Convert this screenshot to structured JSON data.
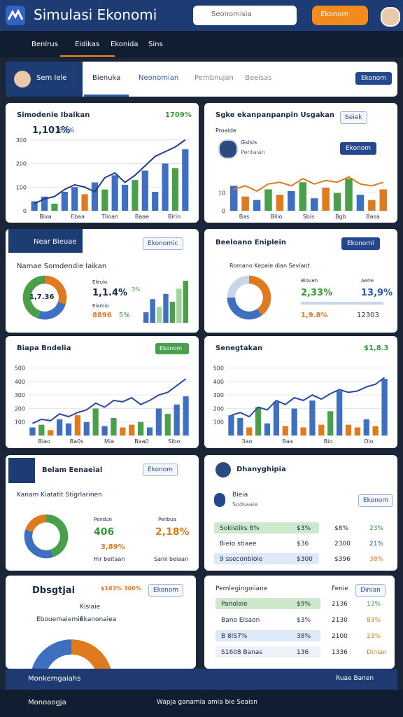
{
  "header": {
    "title": "Simulasi Ekonomi",
    "search": "Seonomisia",
    "button": "Ekonom"
  },
  "nav": {
    "items": [
      "Benlrus",
      "Eidikas",
      "Ekonida",
      "Sins"
    ]
  },
  "tabs": {
    "profile": "Sem Iele",
    "items": [
      "Bienuka",
      "Neonomian",
      "Pembnujan",
      "Beeisas"
    ],
    "button": "Ekonom"
  },
  "c1": {
    "title": "Simodenie Ibaikan",
    "badge": "1709%",
    "stat1": "1,101%",
    "stat2": "83%",
    "bars": [
      40,
      60,
      30,
      80,
      100,
      70,
      120,
      90,
      150,
      110,
      130,
      170,
      80,
      200,
      180,
      260
    ],
    "bar_colors": [
      "#3f6fc0",
      "#3f6fc0",
      "#4aa04a",
      "#3f6fc0",
      "#3f6fc0",
      "#e07a1f",
      "#3f6fc0",
      "#4aa04a",
      "#3f6fc0",
      "#3f6fc0",
      "#4aa04a",
      "#3f6fc0",
      "#3f6fc0",
      "#3f6fc0",
      "#4aa04a",
      "#3f6fc0"
    ],
    "line": [
      30,
      50,
      60,
      90,
      110,
      100,
      80,
      140,
      160,
      120,
      150,
      190,
      230,
      250,
      270,
      300
    ],
    "line_color": "#1f3d8a",
    "ylim": [
      0,
      320
    ],
    "yticks": [
      0,
      100,
      200,
      300
    ],
    "xlabels": [
      "Bixa",
      "Ebaa",
      "Tlioan",
      "Baae",
      "Birin"
    ]
  },
  "c2": {
    "title": "Sgke ekanpanpanpin Usgakan",
    "dropdown": "Seiek",
    "label": "Proaide",
    "name": "Gsisis",
    "role": "Pentaian",
    "button": "Ekonom",
    "bars": [
      14,
      8,
      6,
      12,
      9,
      11,
      16,
      7,
      13,
      10,
      18,
      9,
      6,
      12
    ],
    "bar_colors": [
      "#3f6fc0",
      "#e07a1f",
      "#3f6fc0",
      "#4aa04a",
      "#e07a1f",
      "#3f6fc0",
      "#4aa04a",
      "#3f6fc0",
      "#e07a1f",
      "#4aa04a",
      "#4aa04a",
      "#3f6fc0",
      "#e07a1f",
      "#e07a1f"
    ],
    "line": [
      12,
      14,
      11,
      15,
      16,
      14,
      18,
      15,
      17,
      16,
      19,
      15,
      14,
      16
    ],
    "line_color": "#e07a1f",
    "ylim": [
      0,
      22
    ],
    "yticks": [
      0,
      10
    ],
    "xlabels": [
      "Bas",
      "Bilio",
      "Sbis",
      "Bgb",
      "Basa"
    ]
  },
  "c3": {
    "title": "Near Bieuae",
    "dropdown": "Ekonomic",
    "subtitle": "Namae Somdendie Iaikan",
    "center": "1,7.36",
    "segments": [
      30,
      25,
      45
    ],
    "colors": [
      "#e07a1f",
      "#3f6fc0",
      "#4aa04a"
    ],
    "l1": "Eleulo",
    "v1": "1,1.4%",
    "p1": "3%",
    "l2": "Eiamio",
    "v2": "8896",
    "p2": "5%",
    "bars": [
      20,
      45,
      30,
      55,
      40,
      65,
      80
    ],
    "bar_colors": [
      "#3f6fc0",
      "#3f6fc0",
      "#9fd49a",
      "#3f6fc0",
      "#4aa04a",
      "#9fd49a",
      "#4aa04a"
    ]
  },
  "c4": {
    "title": "Beeloano Eniplein",
    "dropdown": "Ekonomi",
    "subtitle": "Romano Kepale dian Seviant",
    "segments": [
      40,
      35,
      25
    ],
    "colors": [
      "#e07a1f",
      "#3f6fc0",
      "#c9d6ea"
    ],
    "l1": "Biouen",
    "v1": "2,33%",
    "l2": "Aerie",
    "v2": "13,9%",
    "v3": "1,9.8%",
    "v4": "12303"
  },
  "c5": {
    "title": "Biapa Bndelia",
    "badge": "Ekonom",
    "bars": [
      60,
      80,
      40,
      120,
      90,
      150,
      100,
      200,
      70,
      130,
      60,
      80,
      100,
      60,
      200,
      160,
      230,
      290
    ],
    "bar_colors": [
      "#3f6fc0",
      "#4aa04a",
      "#e07a1f",
      "#3f6fc0",
      "#3f6fc0",
      "#e07a1f",
      "#3f6fc0",
      "#4aa04a",
      "#3f6fc0",
      "#4aa04a",
      "#e07a1f",
      "#e07a1f",
      "#4aa04a",
      "#3f6fc0",
      "#3f6fc0",
      "#4aa04a",
      "#3f6fc0",
      "#3f6fc0"
    ],
    "line": [
      90,
      120,
      110,
      160,
      140,
      170,
      190,
      240,
      210,
      260,
      250,
      280,
      230,
      260,
      300,
      320,
      370,
      420
    ],
    "line_color": "#2a4a9a",
    "ylim": [
      0,
      550
    ],
    "yticks": [
      100,
      200,
      300,
      400,
      500
    ],
    "xlabels": [
      "Biao",
      "Ba0s",
      "Mia",
      "Baa0",
      "Sibo"
    ]
  },
  "c6": {
    "title": "Senegtakan",
    "badge": "$1,8.3",
    "bars": [
      150,
      130,
      60,
      210,
      90,
      250,
      70,
      200,
      60,
      260,
      80,
      180,
      330,
      80,
      60,
      120,
      70,
      420
    ],
    "bar_colors": [
      "#3f6fc0",
      "#3f6fc0",
      "#e07a1f",
      "#4aa04a",
      "#3f6fc0",
      "#3f6fc0",
      "#e07a1f",
      "#3f6fc0",
      "#e07a1f",
      "#3f6fc0",
      "#e07a1f",
      "#4aa04a",
      "#3f6fc0",
      "#e07a1f",
      "#e07a1f",
      "#3f6fc0",
      "#e07a1f",
      "#3f6fc0"
    ],
    "line": [
      150,
      170,
      140,
      210,
      190,
      260,
      230,
      280,
      260,
      300,
      270,
      310,
      340,
      320,
      330,
      360,
      380,
      430
    ],
    "line_color": "#2a4a9a",
    "ylim": [
      0,
      550
    ],
    "yticks": [
      100,
      200,
      300,
      400,
      500
    ],
    "xlabels": [
      "3ao",
      "Baa",
      "Bio",
      "Dio"
    ]
  },
  "c7": {
    "title": "Belam Eenaeial",
    "dropdown": "Ekonom",
    "subtitle": "Kanam Kiatatit Stigrlarinen",
    "segments": [
      45,
      35,
      20
    ],
    "colors": [
      "#4aa04a",
      "#3f6fc0",
      "#e07a1f"
    ],
    "l1": "Pendun",
    "v1": "406",
    "p1": "3,89%",
    "l2": "Penbua",
    "v2": "2,18%",
    "foot1": "Hir beitaan",
    "foot2": "Sanii beiaan"
  },
  "c8": {
    "title": "Dbsgtjai",
    "note": "$163% 300%",
    "dropdown": "Ekonom",
    "r1": "Ebouemaiemie",
    "r2": "Kisiaie",
    "r3": "Ekanonaiea",
    "segments": [
      25,
      20,
      55
    ],
    "colors": [
      "#e07a1f",
      "#4aa04a",
      "#3f6fc0"
    ]
  },
  "c9": {
    "title": "Dhanyghipia",
    "name": "Bieia",
    "role": "Sodsaaie",
    "dropdown": "Ekonom",
    "rows": [
      [
        "Sokistiks 8%",
        "$3%",
        "$8%",
        "23%"
      ],
      [
        "Bieio stiaee",
        "$36",
        "2300",
        "21%"
      ],
      [
        "9 sseconbioie",
        "$300",
        "$396",
        "38%"
      ]
    ]
  },
  "c10": {
    "title": "Pemlegingoiiane",
    "col": "Fenie",
    "button": "Dinian",
    "rows": [
      [
        "Panolaie",
        "$9%",
        "2136",
        "13%"
      ],
      [
        "Bano Eisaon",
        "$3%",
        "2130",
        "83%"
      ],
      [
        "B 8iS7%",
        "38%",
        "2100",
        "23%"
      ],
      [
        "S1608 Banas",
        "136",
        "1336",
        "Dinian"
      ]
    ]
  },
  "bar": {
    "left": "Monkemgaiahs",
    "right": "Ruae Banen"
  },
  "footer": {
    "left": "Monoaogja",
    "center": "Wapja ganamia amia bie Seaisn"
  }
}
